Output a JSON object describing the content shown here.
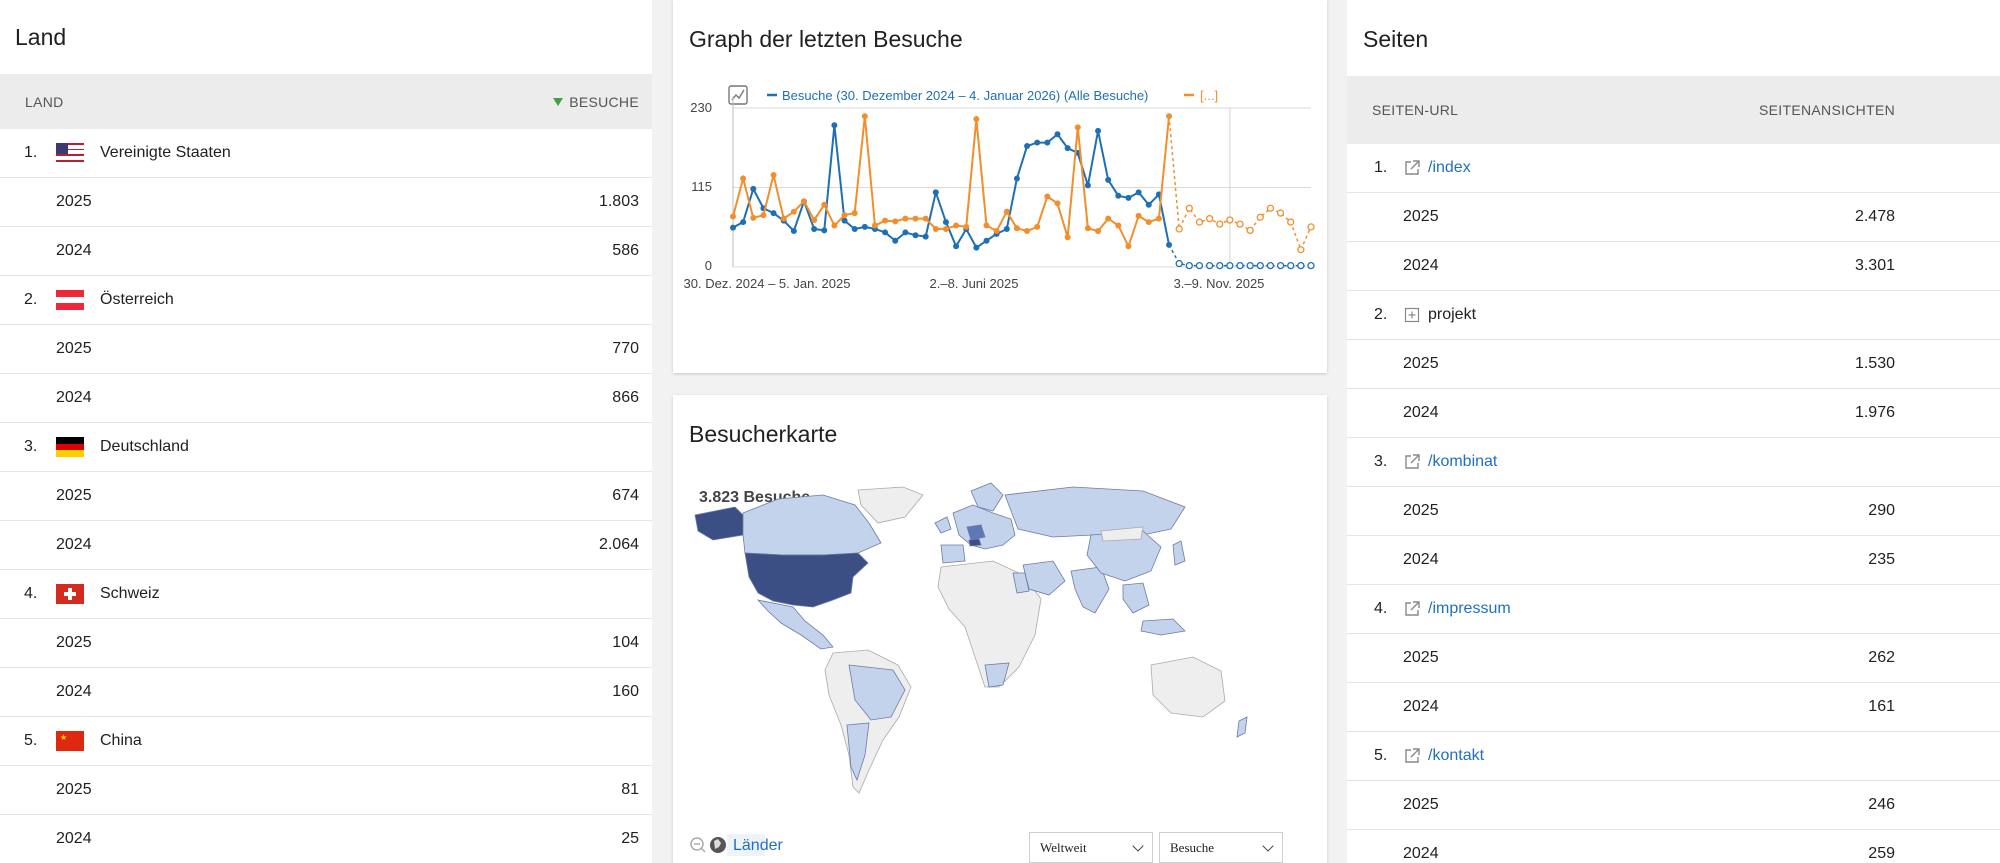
{
  "land": {
    "title": "Land",
    "col_left": "LAND",
    "col_right": "BESUCHE",
    "rows": [
      {
        "rank": "1.",
        "country": "Vereinigte Staaten",
        "flag": "us-flag-icon",
        "y1": "2025",
        "v1": "1.803",
        "y2": "2024",
        "v2": "586"
      },
      {
        "rank": "2.",
        "country": "Österreich",
        "flag": "at-flag-icon",
        "y1": "2025",
        "v1": "770",
        "y2": "2024",
        "v2": "866"
      },
      {
        "rank": "3.",
        "country": "Deutschland",
        "flag": "de-flag-icon",
        "y1": "2025",
        "v1": "674",
        "y2": "2024",
        "v2": "2.064"
      },
      {
        "rank": "4.",
        "country": "Schweiz",
        "flag": "ch-flag-icon",
        "y1": "2025",
        "v1": "104",
        "y2": "2024",
        "v2": "160"
      },
      {
        "rank": "5.",
        "country": "China",
        "flag": "cn-flag-icon",
        "y1": "2025",
        "v1": "81",
        "y2": "2024",
        "v2": "25"
      }
    ]
  },
  "graph": {
    "title": "Graph der letzten Besuche",
    "legend_series1": "Besuche (30. Dezember 2024 – 4. Januar 2026) (Alle Besuche)",
    "legend_series2": "[...]",
    "y_ticks": [
      "230",
      "115",
      "0"
    ],
    "x_ticks": [
      "30. Dez. 2024 – 5. Jan. 2025",
      "2.–8. Juni 2025",
      "3.–9. Nov. 2025"
    ]
  },
  "chart_data": {
    "type": "line",
    "ylim": [
      0,
      230
    ],
    "series": [
      {
        "name": "Besuche (30. Dezember 2024 – 4. Januar 2026) (Alle Besuche)",
        "color": "#1f6fb5",
        "values": [
          57,
          65,
          113,
          85,
          78,
          67,
          52,
          95,
          55,
          53,
          205,
          67,
          55,
          58,
          55,
          50,
          38,
          50,
          46,
          44,
          108,
          65,
          30,
          55,
          28,
          38,
          48,
          55,
          128,
          175,
          180,
          180,
          192,
          172,
          165,
          118,
          197,
          126,
          103,
          100,
          108,
          90,
          105,
          32,
          5,
          2,
          2,
          2,
          2,
          2,
          2,
          2,
          2,
          2,
          2,
          2,
          2,
          2
        ]
      },
      {
        "name": "[...]",
        "color": "#f28e2b",
        "values": [
          73,
          128,
          71,
          75,
          133,
          70,
          80,
          95,
          68,
          90,
          60,
          75,
          78,
          218,
          60,
          67,
          66,
          70,
          70,
          70,
          55,
          55,
          60,
          58,
          214,
          60,
          52,
          80,
          56,
          52,
          58,
          102,
          92,
          43,
          202,
          56,
          52,
          70,
          60,
          30,
          74,
          65,
          70,
          218,
          55,
          85,
          65,
          70,
          62,
          68,
          62,
          53,
          72,
          85,
          78,
          65,
          25,
          58
        ]
      }
    ]
  },
  "map": {
    "title": "Besucherkarte",
    "total": "3.823 Besuche",
    "link": "Länder",
    "select_region": "Weltweit",
    "select_metric": "Besuche",
    "colors": {
      "high": "#3b4f85",
      "mid": "#5d78b6",
      "low": "#c4d3ec",
      "none": "#eeeeee"
    }
  },
  "pages": {
    "title": "Seiten",
    "col_left": "SEITEN-URL",
    "col_right": "SEITENANSICHTEN",
    "rows": [
      {
        "rank": "1.",
        "label": "/index",
        "icon": "external-link-icon",
        "y1": "2025",
        "v1": "2.478",
        "y2": "2024",
        "v2": "3.301"
      },
      {
        "rank": "2.",
        "label": "projekt",
        "icon": "folder-expand-icon",
        "y1": "2025",
        "v1": "1.530",
        "y2": "2024",
        "v2": "1.976"
      },
      {
        "rank": "3.",
        "label": "/kombinat",
        "icon": "external-link-icon",
        "y1": "2025",
        "v1": "290",
        "y2": "2024",
        "v2": "235"
      },
      {
        "rank": "4.",
        "label": "/impressum",
        "icon": "external-link-icon",
        "y1": "2025",
        "v1": "262",
        "y2": "2024",
        "v2": "161"
      },
      {
        "rank": "5.",
        "label": "/kontakt",
        "icon": "external-link-icon",
        "y1": "2025",
        "v1": "246",
        "y2": "2024",
        "v2": "259"
      }
    ]
  }
}
